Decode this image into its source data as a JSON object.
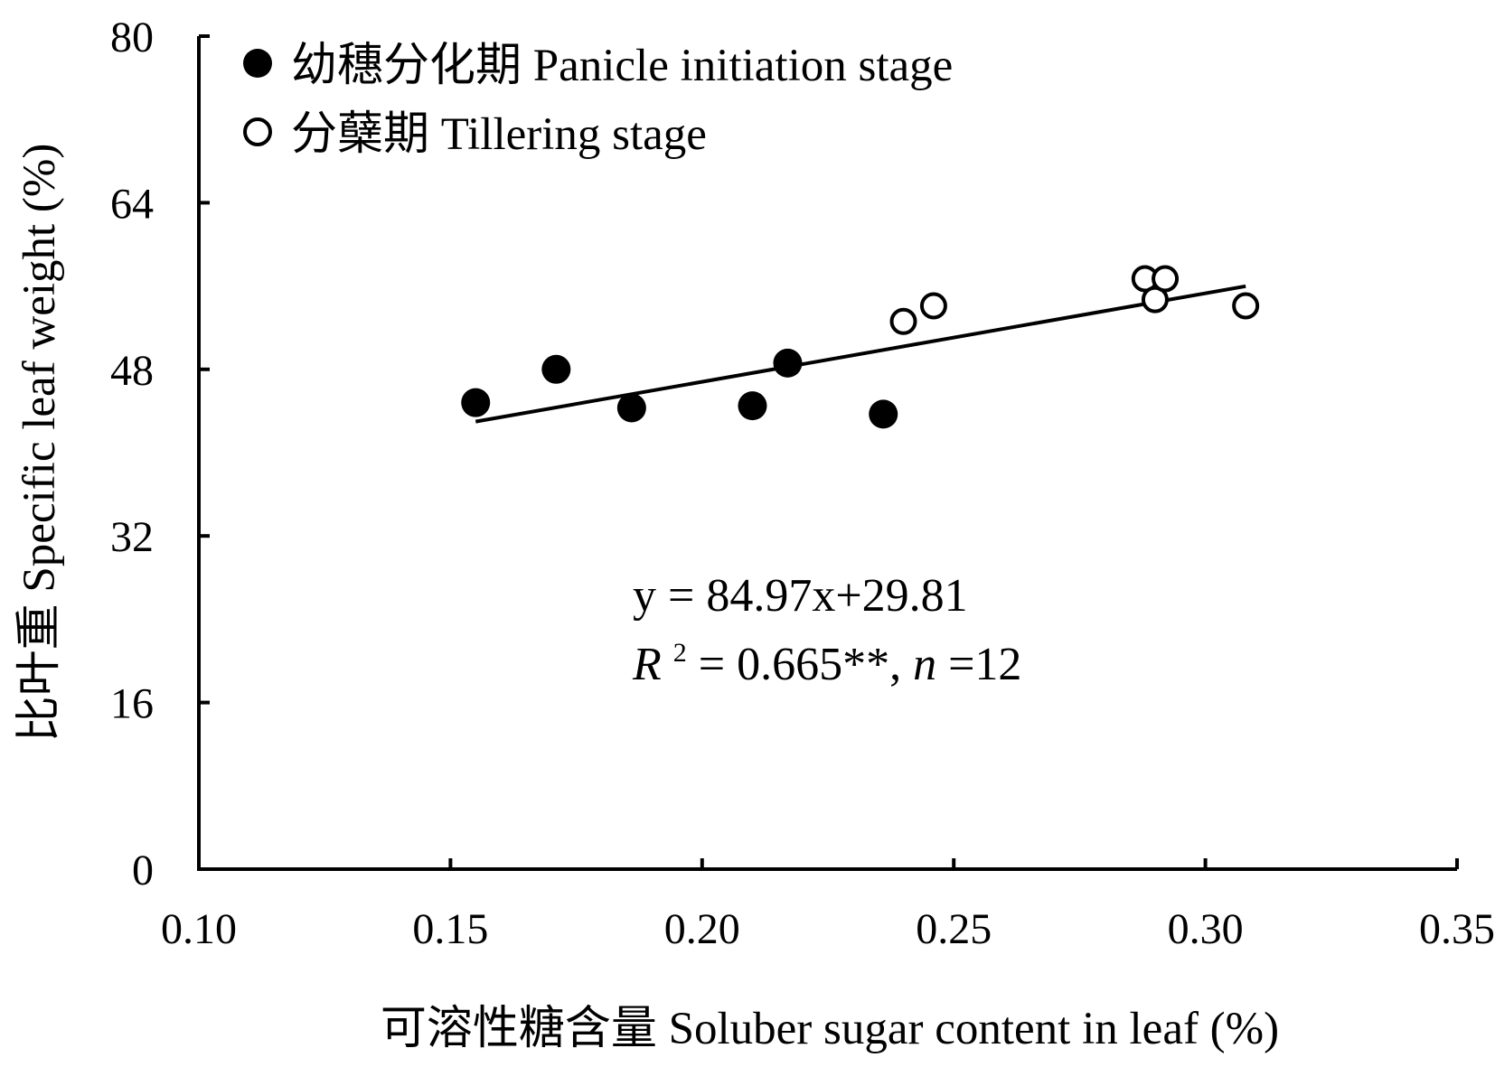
{
  "chart_data": {
    "type": "scatter",
    "xlabel": "可溶性糖含量 Soluber sugar content in leaf (%)",
    "ylabel": "比叶重 Specific leaf weight (%)",
    "xlim": [
      0.1,
      0.35
    ],
    "ylim": [
      0,
      80
    ],
    "x_ticks": [
      "0.10",
      "0.15",
      "0.20",
      "0.25",
      "0.30",
      "0.35"
    ],
    "y_ticks": [
      "0",
      "16",
      "32",
      "48",
      "64",
      "80"
    ],
    "grid": false,
    "legend_position": "top-left",
    "series": [
      {
        "name": "幼穗分化期 Panicle initiation stage",
        "marker": "filled-circle",
        "color": "#000000",
        "points": [
          {
            "x": 0.155,
            "y": 44.8
          },
          {
            "x": 0.171,
            "y": 48.0
          },
          {
            "x": 0.186,
            "y": 44.3
          },
          {
            "x": 0.21,
            "y": 44.5
          },
          {
            "x": 0.217,
            "y": 48.6
          },
          {
            "x": 0.236,
            "y": 43.7
          }
        ]
      },
      {
        "name": "分蘖期 Tillering stage",
        "marker": "open-circle",
        "color": "#000000",
        "points": [
          {
            "x": 0.24,
            "y": 52.6
          },
          {
            "x": 0.246,
            "y": 54.1
          },
          {
            "x": 0.288,
            "y": 56.7
          },
          {
            "x": 0.29,
            "y": 54.7
          },
          {
            "x": 0.292,
            "y": 56.7
          },
          {
            "x": 0.308,
            "y": 54.1
          }
        ]
      }
    ],
    "trendline": {
      "slope": 84.97,
      "intercept": 29.81,
      "x_range": [
        0.155,
        0.308
      ]
    },
    "annotation": {
      "equation": "y = 84.97x+29.81",
      "r_symbol": "R",
      "r_sup": "2",
      "r_value": " = 0.665**, ",
      "n_symbol": "n",
      "n_value": "=12"
    }
  }
}
